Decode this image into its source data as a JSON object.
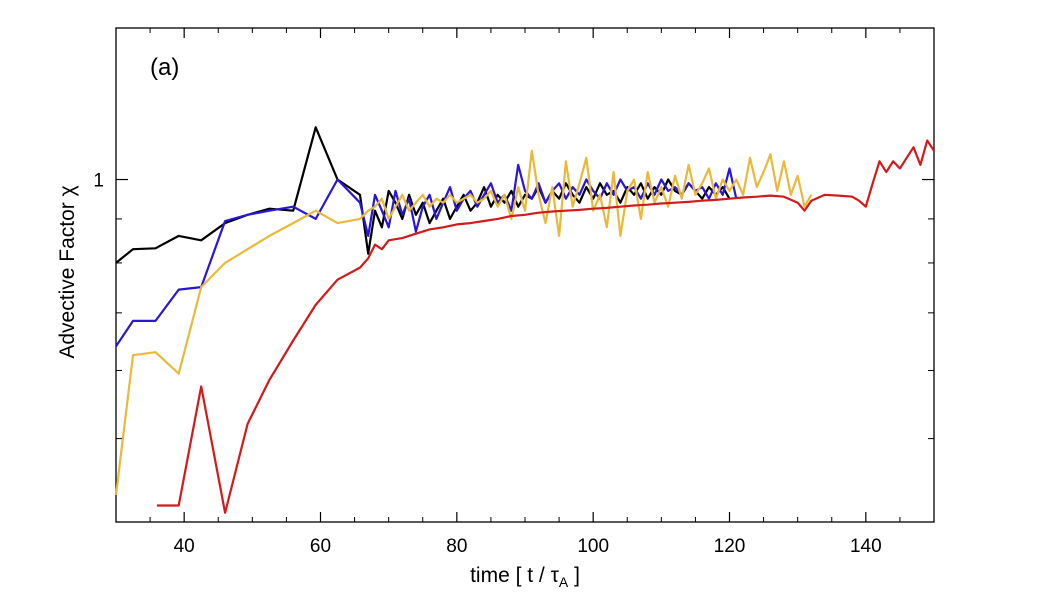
{
  "chart_data": {
    "type": "line",
    "panel_label": "(a)",
    "xlabel": "time  [ t / ",
    "xlabel_symbol": "τ",
    "xlabel_sub": "A",
    "xlabel_end": " ]",
    "ylabel": "Advective Factor χ",
    "xlim": [
      30,
      150
    ],
    "ylim_log": [
      0.4,
      1.5
    ],
    "x_ticks": [
      40,
      60,
      80,
      100,
      120,
      140
    ],
    "x_tick_labels": [
      "40",
      "60",
      "80",
      "100",
      "120",
      "140"
    ],
    "y_tick_labels": [
      {
        "value": 1,
        "label": "1"
      }
    ],
    "y_minor_ticks": [
      0.5,
      0.6,
      0.7,
      0.8,
      0.9
    ],
    "grid": false,
    "legend": "none",
    "series": [
      {
        "name": "black",
        "color": "#000000",
        "points": [
          [
            30,
            0.8
          ],
          [
            32.5,
            0.83
          ],
          [
            35.8,
            0.832
          ],
          [
            39.2,
            0.86
          ],
          [
            42.5,
            0.85
          ],
          [
            46,
            0.89
          ],
          [
            49.3,
            0.91
          ],
          [
            52.5,
            0.925
          ],
          [
            56,
            0.92
          ],
          [
            59.3,
            1.15
          ],
          [
            62.5,
            1.0
          ],
          [
            65.8,
            0.96
          ],
          [
            67,
            0.82
          ],
          [
            68,
            0.92
          ],
          [
            69,
            0.88
          ],
          [
            70,
            0.97
          ],
          [
            71,
            0.94
          ],
          [
            72,
            0.9
          ],
          [
            73,
            0.96
          ],
          [
            74,
            0.91
          ],
          [
            75,
            0.94
          ],
          [
            76,
            0.89
          ],
          [
            77,
            0.92
          ],
          [
            78,
            0.95
          ],
          [
            79,
            0.9
          ],
          [
            80,
            0.93
          ],
          [
            81,
            0.96
          ],
          [
            82,
            0.92
          ],
          [
            83,
            0.94
          ],
          [
            84,
            0.98
          ],
          [
            85,
            0.93
          ],
          [
            86,
            0.96
          ],
          [
            87,
            0.94
          ],
          [
            88,
            0.97
          ],
          [
            89,
            0.93
          ],
          [
            90,
            0.96
          ],
          [
            91,
            0.95
          ],
          [
            92,
            0.98
          ],
          [
            93,
            0.94
          ],
          [
            94,
            0.97
          ],
          [
            95,
            0.95
          ],
          [
            96,
            0.99
          ],
          [
            97,
            0.96
          ],
          [
            98,
            0.94
          ],
          [
            99,
            0.98
          ],
          [
            100,
            0.95
          ],
          [
            101,
            0.99
          ],
          [
            102,
            0.96
          ],
          [
            103,
            0.97
          ],
          [
            104,
            0.94
          ],
          [
            105,
            0.98
          ],
          [
            106,
            0.96
          ],
          [
            107,
            0.99
          ],
          [
            108,
            0.95
          ],
          [
            109,
            0.98
          ],
          [
            110,
            0.96
          ],
          [
            111,
            1.0
          ],
          [
            112,
            0.97
          ],
          [
            113,
            0.96
          ],
          [
            114,
            0.99
          ],
          [
            115,
            0.97
          ],
          [
            116,
            0.95
          ],
          [
            117,
            0.98
          ],
          [
            118,
            0.96
          ],
          [
            119,
            0.98
          ],
          [
            120,
            0.95
          ]
        ]
      },
      {
        "name": "blue",
        "color": "#2a16d6",
        "points": [
          [
            30,
            0.64
          ],
          [
            32.5,
            0.685
          ],
          [
            35.8,
            0.685
          ],
          [
            39.2,
            0.745
          ],
          [
            42.5,
            0.75
          ],
          [
            46,
            0.895
          ],
          [
            49.3,
            0.91
          ],
          [
            52.5,
            0.92
          ],
          [
            56,
            0.93
          ],
          [
            59.3,
            0.9
          ],
          [
            62.5,
            1.0
          ],
          [
            65.8,
            0.94
          ],
          [
            67,
            0.86
          ],
          [
            68,
            0.96
          ],
          [
            69,
            0.92
          ],
          [
            70,
            0.88
          ],
          [
            71,
            0.97
          ],
          [
            72,
            0.91
          ],
          [
            73,
            0.95
          ],
          [
            74,
            0.87
          ],
          [
            75,
            0.93
          ],
          [
            76,
            0.96
          ],
          [
            77,
            0.9
          ],
          [
            78,
            0.94
          ],
          [
            79,
            0.98
          ],
          [
            80,
            0.92
          ],
          [
            81,
            0.95
          ],
          [
            82,
            0.97
          ],
          [
            83,
            0.93
          ],
          [
            84,
            0.96
          ],
          [
            85,
            0.99
          ],
          [
            86,
            0.94
          ],
          [
            87,
            0.96
          ],
          [
            88,
            0.92
          ],
          [
            89,
            1.04
          ],
          [
            90,
            0.97
          ],
          [
            91,
            0.95
          ],
          [
            92,
            0.99
          ],
          [
            93,
            0.94
          ],
          [
            94,
            0.97
          ],
          [
            95,
            0.99
          ],
          [
            96,
            0.95
          ],
          [
            97,
            0.98
          ],
          [
            98,
            0.96
          ],
          [
            99,
            1.0
          ],
          [
            100,
            0.97
          ],
          [
            101,
            0.95
          ],
          [
            102,
            0.99
          ],
          [
            103,
            0.96
          ],
          [
            104,
            1.0
          ],
          [
            105,
            0.97
          ],
          [
            106,
            0.98
          ],
          [
            107,
            0.95
          ],
          [
            108,
            0.99
          ],
          [
            109,
            0.96
          ],
          [
            110,
            1.0
          ],
          [
            111,
            0.97
          ],
          [
            112,
            0.98
          ],
          [
            113,
            0.96
          ],
          [
            114,
            0.99
          ],
          [
            115,
            0.97
          ],
          [
            116,
            0.98
          ],
          [
            117,
            0.95
          ],
          [
            118,
            0.99
          ],
          [
            119,
            0.96
          ],
          [
            120,
            1.03
          ],
          [
            121,
            0.95
          ]
        ]
      },
      {
        "name": "yellow",
        "color": "#e8b93a",
        "points": [
          [
            30,
            0.43
          ],
          [
            32.5,
            0.625
          ],
          [
            35.8,
            0.63
          ],
          [
            39.2,
            0.595
          ],
          [
            42.5,
            0.75
          ],
          [
            46,
            0.8
          ],
          [
            49.3,
            0.83
          ],
          [
            52.5,
            0.86
          ],
          [
            56,
            0.89
          ],
          [
            59.3,
            0.92
          ],
          [
            62.5,
            0.89
          ],
          [
            65.8,
            0.9
          ],
          [
            67,
            0.92
          ],
          [
            68,
            0.93
          ],
          [
            69,
            0.95
          ],
          [
            70,
            0.9
          ],
          [
            71,
            0.93
          ],
          [
            72,
            0.96
          ],
          [
            73,
            0.92
          ],
          [
            74,
            0.94
          ],
          [
            75,
            0.96
          ],
          [
            76,
            0.93
          ],
          [
            77,
            0.95
          ],
          [
            78,
            0.94
          ],
          [
            79,
            0.96
          ],
          [
            80,
            0.94
          ],
          [
            81,
            0.95
          ],
          [
            82,
            0.96
          ],
          [
            83,
            0.94
          ],
          [
            84,
            0.95
          ],
          [
            85,
            0.97
          ],
          [
            86,
            0.93
          ],
          [
            87,
            0.96
          ],
          [
            88,
            0.9
          ],
          [
            89,
            0.98
          ],
          [
            90,
            0.92
          ],
          [
            91,
            1.08
          ],
          [
            92,
            0.96
          ],
          [
            93,
            0.89
          ],
          [
            94,
            0.98
          ],
          [
            95,
            0.86
          ],
          [
            96,
            1.05
          ],
          [
            97,
            0.93
          ],
          [
            98,
            0.99
          ],
          [
            99,
            1.06
          ],
          [
            100,
            0.92
          ],
          [
            101,
            0.96
          ],
          [
            102,
            0.88
          ],
          [
            103,
            1.02
          ],
          [
            104,
            0.86
          ],
          [
            105,
            0.97
          ],
          [
            106,
            1.0
          ],
          [
            107,
            0.9
          ],
          [
            108,
            1.02
          ],
          [
            109,
            0.94
          ],
          [
            110,
            0.98
          ],
          [
            111,
            0.93
          ],
          [
            112,
            1.01
          ],
          [
            113,
            0.95
          ],
          [
            114,
            1.04
          ],
          [
            115,
            0.96
          ],
          [
            116,
            0.99
          ],
          [
            117,
            1.03
          ],
          [
            118,
            0.95
          ],
          [
            119,
            1.0
          ],
          [
            120,
            0.97
          ],
          [
            121,
            1.0
          ],
          [
            122,
            0.96
          ],
          [
            123,
            1.06
          ],
          [
            124,
            0.98
          ],
          [
            125,
            1.02
          ],
          [
            126,
            1.07
          ],
          [
            127,
            0.97
          ],
          [
            128,
            1.05
          ],
          [
            129,
            0.96
          ],
          [
            130,
            1.01
          ],
          [
            131,
            0.93
          ],
          [
            132,
            0.96
          ]
        ]
      },
      {
        "name": "red",
        "color": "#d11a1a",
        "points": [
          [
            36,
            0.418
          ],
          [
            39.2,
            0.418
          ],
          [
            42.5,
            0.575
          ],
          [
            46,
            0.41
          ],
          [
            49.3,
            0.52
          ],
          [
            52.5,
            0.585
          ],
          [
            56,
            0.65
          ],
          [
            59.3,
            0.715
          ],
          [
            62.5,
            0.765
          ],
          [
            65.8,
            0.79
          ],
          [
            67,
            0.81
          ],
          [
            68,
            0.84
          ],
          [
            69,
            0.83
          ],
          [
            70,
            0.85
          ],
          [
            72,
            0.855
          ],
          [
            74,
            0.865
          ],
          [
            76,
            0.875
          ],
          [
            78,
            0.88
          ],
          [
            80,
            0.887
          ],
          [
            82,
            0.89
          ],
          [
            84,
            0.895
          ],
          [
            86,
            0.9
          ],
          [
            88,
            0.907
          ],
          [
            90,
            0.91
          ],
          [
            92,
            0.915
          ],
          [
            94,
            0.918
          ],
          [
            96,
            0.92
          ],
          [
            98,
            0.922
          ],
          [
            100,
            0.925
          ],
          [
            102,
            0.927
          ],
          [
            104,
            0.93
          ],
          [
            106,
            0.933
          ],
          [
            108,
            0.935
          ],
          [
            110,
            0.938
          ],
          [
            112,
            0.94
          ],
          [
            114,
            0.942
          ],
          [
            116,
            0.945
          ],
          [
            118,
            0.947
          ],
          [
            120,
            0.95
          ],
          [
            122,
            0.953
          ],
          [
            124,
            0.955
          ],
          [
            126,
            0.958
          ],
          [
            128,
            0.955
          ],
          [
            130,
            0.94
          ],
          [
            131,
            0.92
          ],
          [
            132,
            0.945
          ],
          [
            134,
            0.96
          ],
          [
            136,
            0.958
          ],
          [
            138,
            0.955
          ],
          [
            139,
            0.945
          ],
          [
            140,
            0.93
          ],
          [
            141,
            0.99
          ],
          [
            142,
            1.05
          ],
          [
            143,
            1.02
          ],
          [
            144,
            1.05
          ],
          [
            145,
            1.03
          ],
          [
            146,
            1.06
          ],
          [
            147,
            1.09
          ],
          [
            148,
            1.04
          ],
          [
            149,
            1.11
          ],
          [
            150,
            1.08
          ]
        ]
      }
    ]
  }
}
